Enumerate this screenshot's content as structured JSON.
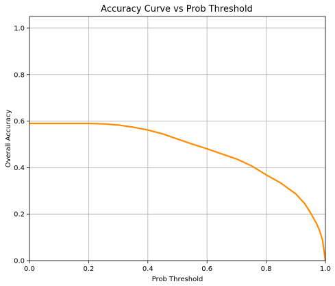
{
  "chart_data": {
    "type": "line",
    "title": "Accuracy Curve vs Prob Threshold",
    "xlabel": "Prob Threshold",
    "ylabel": "Overall Accuracy",
    "xlim": [
      0.0,
      1.0
    ],
    "ylim": [
      0.0,
      1.05
    ],
    "xticks": [
      "0.0",
      "0.2",
      "0.4",
      "0.6",
      "0.8",
      "1.0"
    ],
    "yticks": [
      "0.0",
      "0.2",
      "0.4",
      "0.6",
      "0.8",
      "1.0"
    ],
    "grid": true,
    "line_color": "#ff8c00",
    "series": [
      {
        "x": [
          0.0,
          0.05,
          0.1,
          0.15,
          0.2,
          0.25,
          0.3,
          0.35,
          0.4,
          0.45,
          0.5,
          0.55,
          0.6,
          0.65,
          0.7,
          0.75,
          0.8,
          0.85,
          0.9,
          0.93,
          0.95,
          0.97,
          0.98,
          0.99,
          1.0
        ],
        "y": [
          0.59,
          0.59,
          0.59,
          0.59,
          0.59,
          0.588,
          0.583,
          0.574,
          0.562,
          0.545,
          0.523,
          0.501,
          0.481,
          0.459,
          0.437,
          0.408,
          0.369,
          0.333,
          0.287,
          0.245,
          0.205,
          0.16,
          0.13,
          0.09,
          0.0
        ]
      }
    ]
  }
}
